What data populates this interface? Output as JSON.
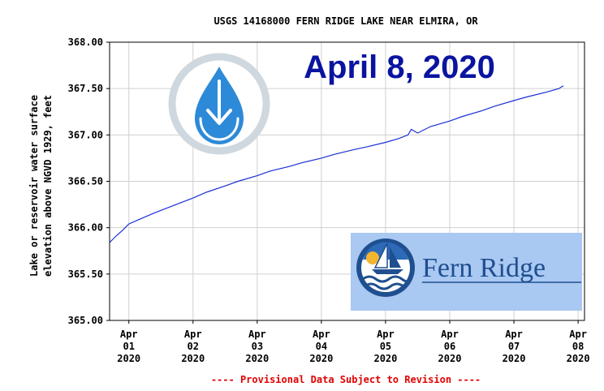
{
  "chart_data": {
    "type": "line",
    "title": "USGS 14168000 FERN RIDGE LAKE NEAR ELMIRA, OR",
    "ylabel_lines": [
      "Lake or reservoir water surface",
      "elevation above NGVD 1929, feet"
    ],
    "ylim": [
      365.0,
      368.0
    ],
    "yticks": [
      "365.00",
      "365.50",
      "366.00",
      "366.50",
      "367.00",
      "367.50",
      "368.00"
    ],
    "xlim": [
      0,
      7.4
    ],
    "xticks": [
      {
        "pos": 0.3,
        "lines": [
          "Apr",
          "01",
          "2020"
        ]
      },
      {
        "pos": 1.3,
        "lines": [
          "Apr",
          "02",
          "2020"
        ]
      },
      {
        "pos": 2.3,
        "lines": [
          "Apr",
          "03",
          "2020"
        ]
      },
      {
        "pos": 3.3,
        "lines": [
          "Apr",
          "04",
          "2020"
        ]
      },
      {
        "pos": 4.3,
        "lines": [
          "Apr",
          "05",
          "2020"
        ]
      },
      {
        "pos": 5.3,
        "lines": [
          "Apr",
          "06",
          "2020"
        ]
      },
      {
        "pos": 6.3,
        "lines": [
          "Apr",
          "07",
          "2020"
        ]
      },
      {
        "pos": 7.3,
        "lines": [
          "Apr",
          "08",
          "2020"
        ]
      }
    ],
    "grid": true,
    "series": [
      {
        "color": "#1a2fd6",
        "x": [
          0,
          0.1,
          0.2,
          0.3,
          0.5,
          0.7,
          1.0,
          1.3,
          1.5,
          1.8,
          2.0,
          2.3,
          2.5,
          2.8,
          3.0,
          3.3,
          3.5,
          3.8,
          4.0,
          4.3,
          4.5,
          4.65,
          4.7,
          4.8,
          5.0,
          5.3,
          5.5,
          5.8,
          6.0,
          6.3,
          6.5,
          6.8,
          7.0,
          7.07
        ],
        "y": [
          365.84,
          365.91,
          365.97,
          366.04,
          366.1,
          366.16,
          366.24,
          366.32,
          366.38,
          366.45,
          366.5,
          366.56,
          366.61,
          366.66,
          366.7,
          366.75,
          366.79,
          366.84,
          366.87,
          366.92,
          366.96,
          367.0,
          367.06,
          367.02,
          367.09,
          367.15,
          367.2,
          367.26,
          367.31,
          367.37,
          367.41,
          367.46,
          367.5,
          367.53
        ]
      }
    ],
    "footnote": "---- Provisional Data Subject to Revision ----"
  },
  "overlay": {
    "date_text": "April 8, 2020",
    "brand_text": "Fern Ridge"
  },
  "icons": {
    "water_drop": "water-drop-down-arrow-icon",
    "sailboat": "sailboat-logo-icon"
  },
  "colors": {
    "line": "#1a2fd6",
    "overlay_text": "#0a14a0",
    "footnote": "#e00000",
    "brand_bg": "#a9c8f2",
    "brand_text": "#1f4f8f"
  }
}
